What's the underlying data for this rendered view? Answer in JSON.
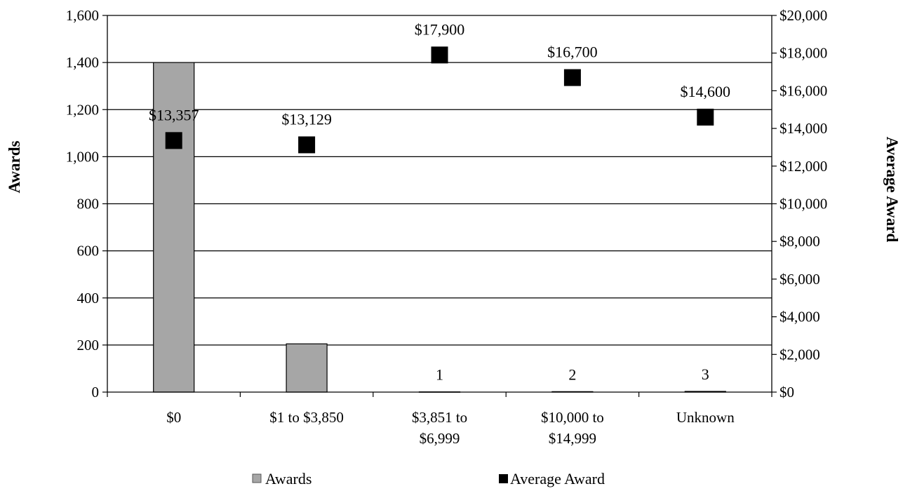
{
  "chart_data": {
    "type": "bar",
    "categories": [
      [
        "$0"
      ],
      [
        "$1 to $3,850"
      ],
      [
        "$3,851 to",
        "$6,999"
      ],
      [
        "$10,000 to",
        "$14,999"
      ],
      [
        "Unknown"
      ]
    ],
    "series": [
      {
        "name": "Awards",
        "type": "bar",
        "axis": "left",
        "values": [
          1400,
          205,
          1,
          2,
          3
        ],
        "data_labels": [
          "",
          "",
          "1",
          "2",
          "3"
        ],
        "color": "#a6a6a6"
      },
      {
        "name": "Average Award",
        "type": "scatter",
        "axis": "right",
        "values": [
          13357,
          13129,
          17900,
          16700,
          14600
        ],
        "data_labels": [
          "$13,357",
          "$13,129",
          "$17,900",
          "$16,700",
          "$14,600"
        ],
        "color": "#000000"
      }
    ],
    "left_axis": {
      "label": "Awards",
      "range": [
        0,
        1600
      ],
      "ticks": [
        0,
        200,
        400,
        600,
        800,
        1000,
        1200,
        1400,
        1600
      ],
      "tick_labels": [
        "0",
        "200",
        "400",
        "600",
        "800",
        "1,000",
        "1,200",
        "1,400",
        "1,600"
      ]
    },
    "right_axis": {
      "label": "Average Award",
      "range": [
        0,
        20000
      ],
      "ticks": [
        0,
        2000,
        4000,
        6000,
        8000,
        10000,
        12000,
        14000,
        16000,
        18000,
        20000
      ],
      "tick_labels": [
        "$0",
        "$2,000",
        "$4,000",
        "$6,000",
        "$8,000",
        "$10,000",
        "$12,000",
        "$14,000",
        "$16,000",
        "$18,000",
        "$20,000"
      ]
    },
    "grid": true,
    "legend": "bottom",
    "legend_entries": [
      "Awards",
      "Average Award"
    ]
  }
}
